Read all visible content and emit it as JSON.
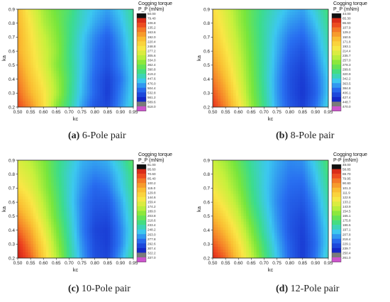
{
  "chart_data": [
    {
      "type": "heatmap",
      "title": "",
      "caption_letter": "(a)",
      "caption_text": "6-Pole pair",
      "xlabel": "kc",
      "ylabel": "ka",
      "xlim": [
        0.5,
        0.95
      ],
      "ylim": [
        0.2,
        0.9
      ],
      "x_ticks": [
        "0.50",
        "0.55",
        "0.60",
        "0.65",
        "0.70",
        "0.75",
        "0.80",
        "0.85",
        "0.90",
        "0.95"
      ],
      "y_ticks": [
        "0.2",
        "0.3",
        "0.4",
        "0.5",
        "0.6",
        "0.7",
        "0.8",
        "0.9"
      ],
      "legend_title": "Cogging torque P_P (mNm)",
      "legend_levels": [
        "50.00",
        "79.40",
        "106.8",
        "135.2",
        "163.6",
        "192.0",
        "220.4",
        "248.8",
        "277.2",
        "305.6",
        "334.0",
        "362.4",
        "390.8",
        "419.2",
        "447.6",
        "476.0",
        "504.4",
        "532.8",
        "561.2",
        "589.6",
        "618.0"
      ],
      "z_min": 50,
      "z_max": 618,
      "x": [
        0.5,
        0.55,
        0.6,
        0.65,
        0.7,
        0.75,
        0.8,
        0.85,
        0.9,
        0.95
      ],
      "y": [
        0.2,
        0.3,
        0.4,
        0.5,
        0.6,
        0.7,
        0.8,
        0.9
      ],
      "z": [
        [
          560,
          505,
          420,
          300,
          230,
          150,
          95,
          80,
          140,
          200
        ],
        [
          540,
          470,
          410,
          330,
          240,
          165,
          110,
          70,
          130,
          190
        ],
        [
          520,
          450,
          390,
          320,
          245,
          170,
          110,
          75,
          120,
          185
        ],
        [
          500,
          430,
          370,
          300,
          240,
          175,
          120,
          90,
          135,
          190
        ],
        [
          480,
          420,
          360,
          310,
          235,
          175,
          125,
          95,
          140,
          200
        ],
        [
          480,
          410,
          350,
          300,
          240,
          180,
          135,
          105,
          150,
          210
        ],
        [
          470,
          400,
          330,
          290,
          240,
          195,
          155,
          130,
          165,
          220
        ],
        [
          460,
          380,
          320,
          280,
          250,
          200,
          170,
          150,
          180,
          230
        ]
      ]
    },
    {
      "type": "heatmap",
      "title": "",
      "caption_letter": "(b)",
      "caption_text": "8-Pole pair",
      "xlabel": "kc",
      "ylabel": "ka",
      "xlim": [
        0.5,
        0.95
      ],
      "ylim": [
        0.2,
        0.9
      ],
      "x_ticks": [
        "0.50",
        "0.55",
        "0.60",
        "0.65",
        "0.70",
        "0.75",
        "0.80",
        "0.85",
        "0.90",
        "0.95"
      ],
      "y_ticks": [
        "0.2",
        "0.3",
        "0.4",
        "0.5",
        "0.6",
        "0.7",
        "0.8",
        "0.9"
      ],
      "legend_title": "Cogging torque P_P (mNm)",
      "legend_levels": [
        "44.00",
        "65.30",
        "86.60",
        "107.9",
        "129.2",
        "150.5",
        "171.8",
        "193.1",
        "214.4",
        "235.7",
        "257.0",
        "278.3",
        "299.6",
        "320.9",
        "342.2",
        "363.5",
        "384.8",
        "406.1",
        "427.4",
        "448.7",
        "470.0"
      ],
      "z_min": 44,
      "z_max": 470,
      "x": [
        0.5,
        0.55,
        0.6,
        0.65,
        0.7,
        0.75,
        0.8,
        0.85,
        0.9,
        0.95
      ],
      "y": [
        0.2,
        0.3,
        0.4,
        0.5,
        0.6,
        0.7,
        0.8,
        0.9
      ],
      "z": [
        [
          440,
          390,
          320,
          240,
          180,
          120,
          80,
          60,
          95,
          150
        ],
        [
          420,
          370,
          300,
          230,
          175,
          115,
          75,
          55,
          85,
          140
        ],
        [
          400,
          350,
          285,
          225,
          170,
          115,
          75,
          58,
          90,
          140
        ],
        [
          380,
          330,
          275,
          220,
          170,
          120,
          80,
          65,
          100,
          150
        ],
        [
          360,
          315,
          265,
          215,
          170,
          125,
          90,
          75,
          110,
          160
        ],
        [
          345,
          300,
          255,
          210,
          170,
          130,
          100,
          90,
          120,
          170
        ],
        [
          330,
          290,
          245,
          205,
          170,
          140,
          115,
          105,
          135,
          180
        ],
        [
          320,
          280,
          240,
          205,
          175,
          150,
          130,
          120,
          150,
          190
        ]
      ]
    },
    {
      "type": "heatmap",
      "title": "",
      "caption_letter": "(c)",
      "caption_text": "10-Pole pair",
      "xlabel": "kc",
      "ylabel": "ka",
      "xlim": [
        0.5,
        0.95
      ],
      "ylim": [
        0.2,
        0.9
      ],
      "x_ticks": [
        "0.50",
        "0.55",
        "0.60",
        "0.65",
        "0.70",
        "0.75",
        "0.80",
        "0.85",
        "0.90",
        "0.95"
      ],
      "y_ticks": [
        "0.2",
        "0.3",
        "0.4",
        "0.5",
        "0.6",
        "0.7",
        "0.8",
        "0.9"
      ],
      "legend_title": "Cogging torque P_P (mNm)",
      "legend_levels": [
        "61.00",
        "95.60",
        "70.60",
        "85.40",
        "100.2",
        "115.0",
        "129.8",
        "144.6",
        "159.4",
        "174.2",
        "189.0",
        "203.8",
        "218.6",
        "233.4",
        "248.2",
        "263.0",
        "277.8",
        "292.6",
        "307.4",
        "322.2",
        "337.0"
      ],
      "z_min": 61,
      "z_max": 337,
      "x": [
        0.5,
        0.55,
        0.6,
        0.65,
        0.7,
        0.75,
        0.8,
        0.85,
        0.9,
        0.95
      ],
      "y": [
        0.2,
        0.3,
        0.4,
        0.5,
        0.6,
        0.7,
        0.8,
        0.9
      ],
      "z": [
        [
          330,
          300,
          250,
          200,
          150,
          110,
          80,
          75,
          110,
          150
        ],
        [
          320,
          285,
          240,
          190,
          145,
          105,
          78,
          72,
          100,
          140
        ],
        [
          300,
          270,
          225,
          180,
          140,
          100,
          75,
          72,
          100,
          135
        ],
        [
          280,
          250,
          210,
          170,
          135,
          100,
          80,
          78,
          105,
          140
        ],
        [
          260,
          235,
          200,
          165,
          130,
          100,
          85,
          85,
          110,
          145
        ],
        [
          240,
          220,
          190,
          160,
          130,
          105,
          90,
          95,
          120,
          150
        ],
        [
          225,
          210,
          185,
          155,
          130,
          110,
          100,
          105,
          125,
          155
        ],
        [
          215,
          200,
          180,
          155,
          135,
          115,
          110,
          115,
          135,
          165
        ]
      ]
    },
    {
      "type": "heatmap",
      "title": "",
      "caption_letter": "(d)",
      "caption_text": "12-Pole pair",
      "xlabel": "kc",
      "ylabel": "ka",
      "xlim": [
        0.5,
        0.95
      ],
      "ylim": [
        0.2,
        0.9
      ],
      "x_ticks": [
        "0.50",
        "0.55",
        "0.60",
        "0.65",
        "0.70",
        "0.75",
        "0.80",
        "0.85",
        "0.90",
        "0.95"
      ],
      "y_ticks": [
        "0.2",
        "0.3",
        "0.4",
        "0.5",
        "0.6",
        "0.7",
        "0.8",
        "0.9"
      ],
      "legend_title": "Cogging torque P-P (mNm)",
      "legend_levels": [
        "48.00",
        "58.85",
        "69.70",
        "79.95",
        "90.80",
        "101.3",
        "111.9",
        "122.6",
        "133.2",
        "143.9",
        "154.5",
        "165.1",
        "175.8",
        "186.5",
        "197.1",
        "207.8",
        "218.4",
        "229.1",
        "239.7",
        "250.4",
        "261.0"
      ],
      "z_min": 48,
      "z_max": 261,
      "x": [
        0.5,
        0.55,
        0.6,
        0.65,
        0.7,
        0.75,
        0.8,
        0.85,
        0.9,
        0.95
      ],
      "y": [
        0.2,
        0.3,
        0.4,
        0.5,
        0.6,
        0.7,
        0.8,
        0.9
      ],
      "z": [
        [
          250,
          230,
          195,
          160,
          125,
          95,
          70,
          55,
          75,
          105
        ],
        [
          235,
          215,
          185,
          150,
          118,
          90,
          68,
          55,
          72,
          100
        ],
        [
          220,
          200,
          172,
          140,
          110,
          85,
          65,
          57,
          75,
          100
        ],
        [
          205,
          185,
          160,
          130,
          105,
          82,
          66,
          60,
          78,
          105
        ],
        [
          190,
          172,
          150,
          122,
          100,
          80,
          68,
          65,
          82,
          110
        ],
        [
          178,
          162,
          142,
          118,
          98,
          82,
          72,
          70,
          88,
          115
        ],
        [
          168,
          155,
          136,
          115,
          98,
          85,
          76,
          76,
          94,
          120
        ],
        [
          160,
          148,
          130,
          112,
          98,
          88,
          80,
          82,
          100,
          125
        ]
      ]
    }
  ]
}
